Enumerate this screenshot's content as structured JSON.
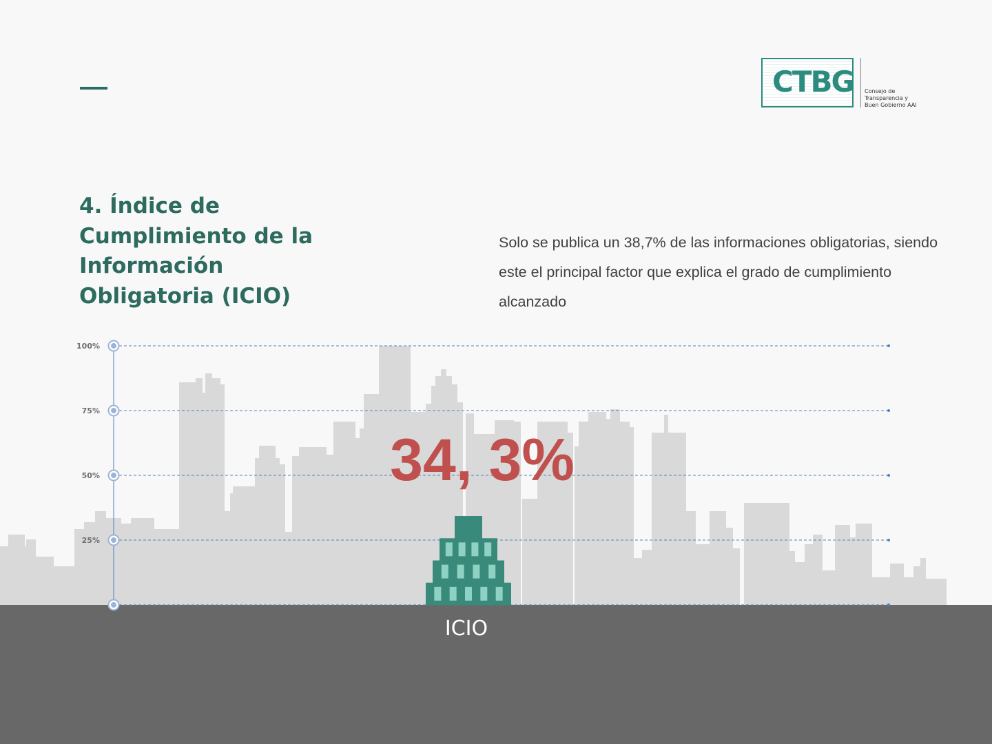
{
  "logo": {
    "mark": "CTBG",
    "text": "Consejo de\nTransparencia y\nBuen Gobierno AAI"
  },
  "title": "4. Índice de Cumplimiento de la Información Obligatoria (ICIO)",
  "description": "Solo se publica un 38,7% de las informaciones obligatorias, siendo este el principal factor que explica el grado de cumplimiento alcanzado",
  "colors": {
    "accent": "#2e6d63",
    "value": "#c0504d",
    "grid": "#4f81bd",
    "building": "#3a8a7b",
    "window": "#8fd1c2",
    "skyline": "#d9d9d9",
    "ground": "#686868"
  },
  "chart_data": {
    "type": "bar",
    "categories": [
      "ICIO"
    ],
    "values": [
      34.3
    ],
    "value_label": "34, 3%",
    "ylim": [
      0,
      100
    ],
    "yticks": [
      {
        "value": 100,
        "label": "100%"
      },
      {
        "value": 75,
        "label": "75%"
      },
      {
        "value": 50,
        "label": "50%"
      },
      {
        "value": 25,
        "label": "25%"
      },
      {
        "value": 0,
        "label": ""
      }
    ],
    "grid": true
  }
}
